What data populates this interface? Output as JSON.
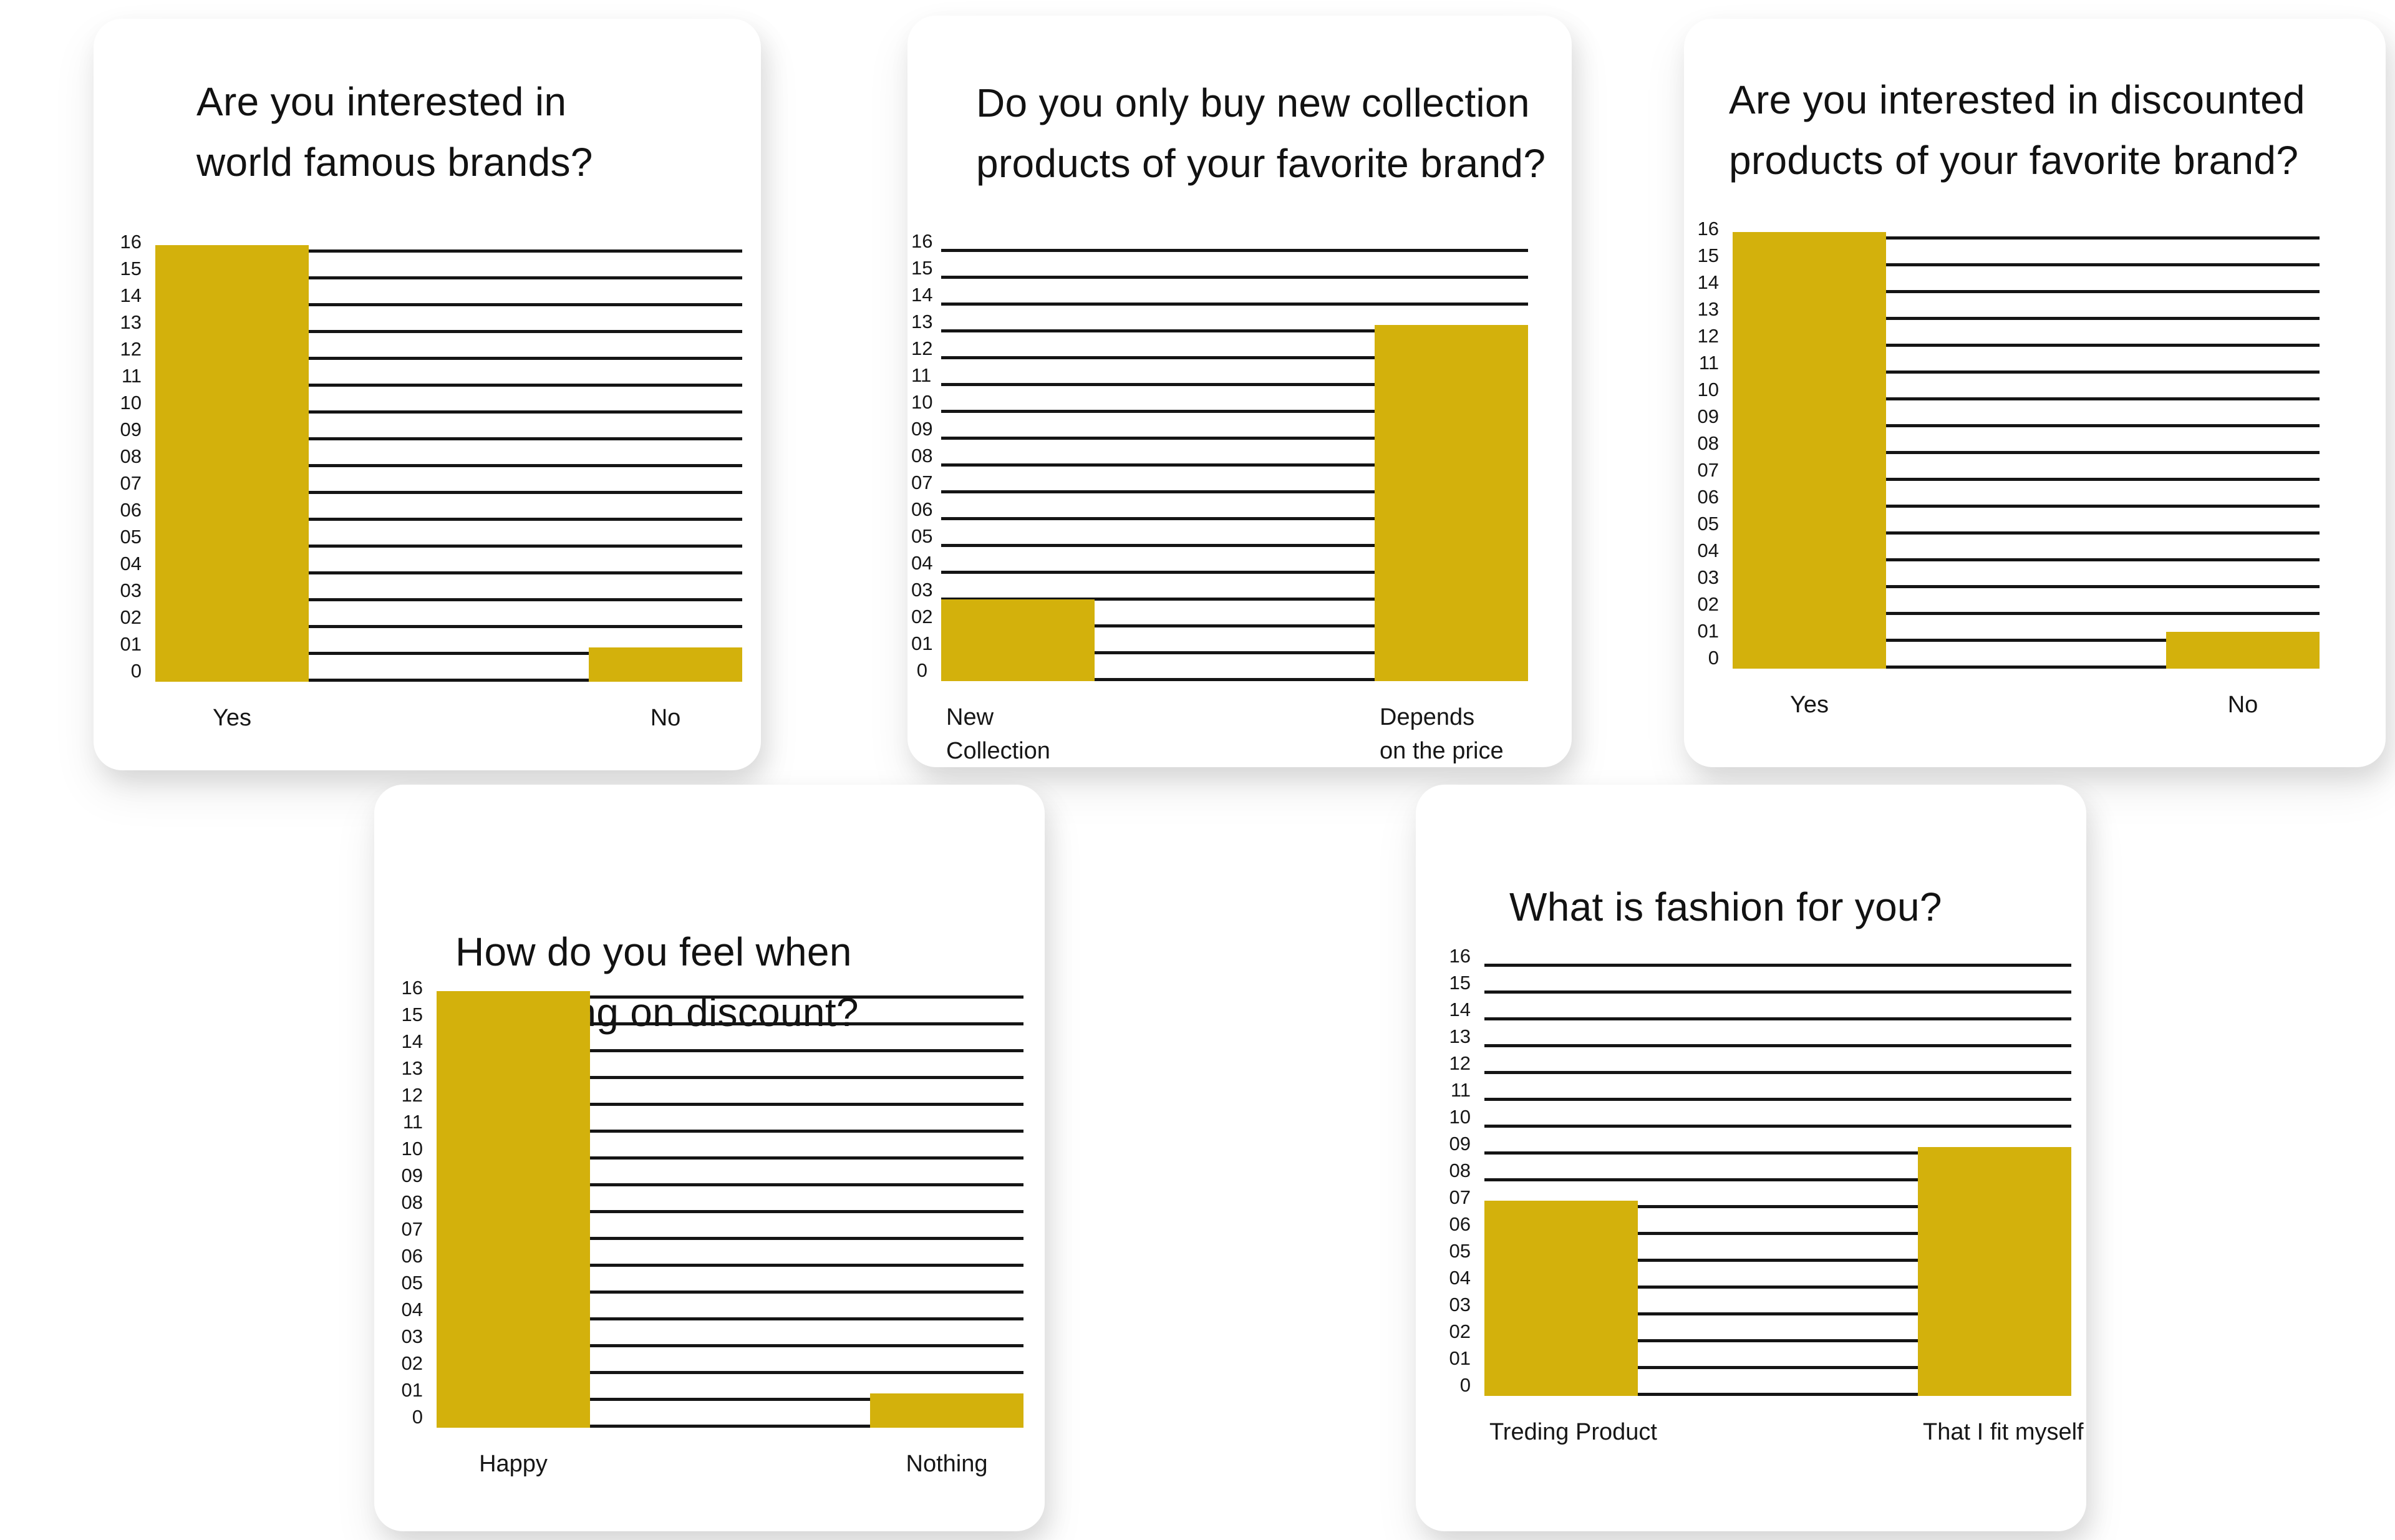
{
  "page": {
    "background": "#ffffff",
    "description_not_invented": "five white rounded survey bar-chart cards"
  },
  "theme": {
    "bar_color": "#d3b10c",
    "grid_color": "#151515",
    "text_color": "#161616",
    "card_background": "#ffffff"
  },
  "yaxis_ticks": [
    "16",
    "15",
    "14",
    "13",
    "12",
    "11",
    "10",
    "09",
    "08",
    "07",
    "06",
    "05",
    "04",
    "03",
    "02",
    "01",
    "0"
  ],
  "chart_data": [
    {
      "type": "bar",
      "title": "Are you interested in world famous brands?",
      "title_lines": [
        "Are you interested in",
        "world famous brands?"
      ],
      "categories": [
        [
          "Yes"
        ],
        [
          "No"
        ]
      ],
      "values": [
        16,
        1
      ],
      "ylim": [
        0,
        16
      ],
      "grid": true,
      "legend": false
    },
    {
      "type": "bar",
      "title": "Do you only buy new collection products of your favorite brand?",
      "title_lines": [
        "Do you only buy new collection",
        "products of your favorite brand?"
      ],
      "categories": [
        [
          "New",
          "Collection"
        ],
        [
          "Depends",
          "on the price"
        ]
      ],
      "values": [
        3,
        13
      ],
      "ylim": [
        0,
        16
      ],
      "grid": true,
      "legend": false
    },
    {
      "type": "bar",
      "title": "Are you interested in discounted products of your favorite brand?",
      "title_lines": [
        "Are you interested in discounted",
        "products of your favorite brand?"
      ],
      "categories": [
        [
          "Yes"
        ],
        [
          "No"
        ]
      ],
      "values": [
        16,
        1
      ],
      "ylim": [
        0,
        16
      ],
      "grid": true,
      "legend": false
    },
    {
      "type": "bar",
      "title": "How do you feel when shopping on discount?",
      "title_lines": [
        "How do you feel when",
        "shopping on discount?"
      ],
      "categories": [
        [
          "Happy"
        ],
        [
          "Nothing"
        ]
      ],
      "values": [
        16,
        1
      ],
      "ylim": [
        0,
        16
      ],
      "grid": true,
      "legend": false
    },
    {
      "type": "bar",
      "title": "What is fashion for you?",
      "title_lines": [
        "What is fashion for you?"
      ],
      "categories": [
        [
          "Treding Product"
        ],
        [
          "That I fit myself"
        ]
      ],
      "values": [
        7,
        9
      ],
      "ylim": [
        0,
        16
      ],
      "grid": true,
      "legend": false
    }
  ]
}
